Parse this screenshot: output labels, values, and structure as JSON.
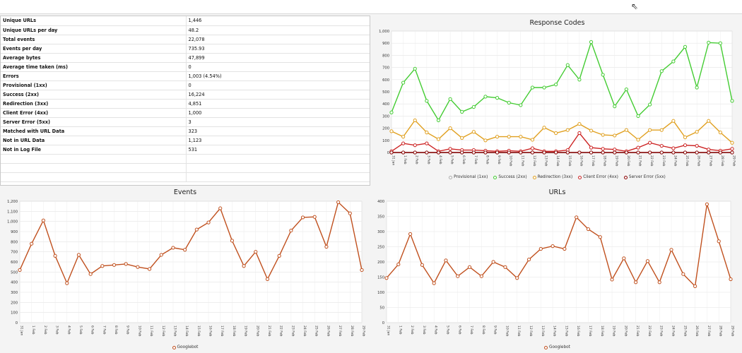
{
  "stats": [
    {
      "label": "Unique URLs",
      "value": "1,446"
    },
    {
      "label": "Unique URLs per day",
      "value": "48.2"
    },
    {
      "label": "Total events",
      "value": "22,078"
    },
    {
      "label": "Events per day",
      "value": "735.93"
    },
    {
      "label": "Average bytes",
      "value": "47,899"
    },
    {
      "label": "Average time taken (ms)",
      "value": "0"
    },
    {
      "label": "Errors",
      "value": "1,003 (4.54%)"
    },
    {
      "label": "Provisional (1xx)",
      "value": "0"
    },
    {
      "label": "Success (2xx)",
      "value": "16,224"
    },
    {
      "label": "Redirection (3xx)",
      "value": "4,851"
    },
    {
      "label": "Client Error (4xx)",
      "value": "1,000"
    },
    {
      "label": "Server Error (5xx)",
      "value": "3"
    },
    {
      "label": "Matched with URL Data",
      "value": "323"
    },
    {
      "label": "Not in URL Data",
      "value": "1,123"
    },
    {
      "label": "Not in Log File",
      "value": "531"
    }
  ],
  "chart_data": [
    {
      "type": "line",
      "title": "Response Codes",
      "ylim": [
        0,
        1000
      ],
      "yticks": [
        0,
        100,
        200,
        300,
        400,
        500,
        600,
        700,
        800,
        900,
        1000
      ],
      "ytick_labels": [
        "0",
        "100",
        "200",
        "300",
        "400",
        "500",
        "600",
        "700",
        "800",
        "900",
        "1,000"
      ],
      "categories": [
        "31 Jan",
        "1 Feb",
        "2 Feb",
        "3 Feb",
        "4 Feb",
        "5 Feb",
        "6 Feb",
        "7 Feb",
        "8 Feb",
        "9 Feb",
        "10 Feb",
        "11 Feb",
        "12 Feb",
        "13 Feb",
        "14 Feb",
        "15 Feb",
        "16 Feb",
        "17 Feb",
        "18 Feb",
        "19 Feb",
        "20 Feb",
        "21 Feb",
        "22 Feb",
        "23 Feb",
        "24 Feb",
        "25 Feb",
        "26 Feb",
        "27 Feb",
        "28 Feb",
        "29 Feb"
      ],
      "legend_position": "bottom",
      "series": [
        {
          "name": "Provisional (1xx)",
          "color": "#aaaaaa",
          "values": [
            0,
            0,
            0,
            0,
            0,
            0,
            0,
            0,
            0,
            0,
            0,
            0,
            0,
            0,
            0,
            0,
            0,
            0,
            0,
            0,
            0,
            0,
            0,
            0,
            0,
            0,
            0,
            0,
            0,
            0
          ]
        },
        {
          "name": "Success (2xx)",
          "color": "#44cc33",
          "values": [
            330,
            575,
            690,
            425,
            265,
            440,
            335,
            375,
            460,
            450,
            410,
            390,
            535,
            535,
            560,
            720,
            600,
            910,
            640,
            380,
            520,
            300,
            395,
            670,
            750,
            870,
            535,
            905,
            900,
            425
          ]
        },
        {
          "name": "Redirection (3xx)",
          "color": "#e0a020",
          "values": [
            175,
            130,
            265,
            165,
            110,
            200,
            120,
            170,
            100,
            130,
            130,
            130,
            105,
            205,
            160,
            185,
            235,
            180,
            145,
            140,
            185,
            105,
            185,
            185,
            260,
            125,
            170,
            260,
            165,
            80
          ]
        },
        {
          "name": "Client Error (4xx)",
          "color": "#cc2222",
          "values": [
            10,
            75,
            60,
            75,
            10,
            30,
            20,
            20,
            15,
            10,
            15,
            10,
            35,
            10,
            10,
            20,
            160,
            40,
            30,
            25,
            10,
            40,
            80,
            55,
            35,
            60,
            55,
            25,
            15,
            30
          ]
        },
        {
          "name": "Server Error (5xx)",
          "color": "#880000",
          "values": [
            0,
            0,
            0,
            0,
            0,
            0,
            0,
            0,
            0,
            0,
            0,
            0,
            0,
            0,
            0,
            0,
            0,
            0,
            0,
            0,
            0,
            0,
            0,
            0,
            0,
            0,
            0,
            0,
            0,
            0
          ]
        }
      ]
    },
    {
      "type": "line",
      "title": "Events",
      "ylim": [
        0,
        1200
      ],
      "yticks": [
        0,
        100,
        200,
        300,
        400,
        500,
        600,
        700,
        800,
        900,
        1000,
        1100,
        1200
      ],
      "ytick_labels": [
        "0",
        "100",
        "200",
        "300",
        "400",
        "500",
        "600",
        "700",
        "800",
        "900",
        "1,000",
        "1,100",
        "1,200"
      ],
      "categories": [
        "31 Jan",
        "1 Feb",
        "2 Feb",
        "3 Feb",
        "4 Feb",
        "5 Feb",
        "6 Feb",
        "7 Feb",
        "8 Feb",
        "9 Feb",
        "10 Feb",
        "11 Feb",
        "12 Feb",
        "13 Feb",
        "14 Feb",
        "15 Feb",
        "16 Feb",
        "17 Feb",
        "18 Feb",
        "19 Feb",
        "20 Feb",
        "21 Feb",
        "22 Feb",
        "23 Feb",
        "24 Feb",
        "25 Feb",
        "26 Feb",
        "27 Feb",
        "28 Feb",
        "29 Feb"
      ],
      "legend_position": "bottom",
      "series": [
        {
          "name": "Googlebot",
          "color": "#c0501e",
          "values": [
            520,
            780,
            1010,
            660,
            390,
            670,
            480,
            560,
            570,
            580,
            550,
            530,
            670,
            740,
            720,
            920,
            990,
            1130,
            810,
            560,
            700,
            430,
            660,
            910,
            1040,
            1045,
            750,
            1190,
            1080,
            520
          ]
        }
      ]
    },
    {
      "type": "line",
      "title": "URLs",
      "ylim": [
        0,
        400
      ],
      "yticks": [
        0,
        50,
        100,
        150,
        200,
        250,
        300,
        350,
        400
      ],
      "ytick_labels": [
        "0",
        "50",
        "100",
        "150",
        "200",
        "250",
        "300",
        "350",
        "400"
      ],
      "categories": [
        "31 Jan",
        "1 Feb",
        "2 Feb",
        "3 Feb",
        "4 Feb",
        "5 Feb",
        "6 Feb",
        "7 Feb",
        "8 Feb",
        "9 Feb",
        "10 Feb",
        "11 Feb",
        "12 Feb",
        "13 Feb",
        "14 Feb",
        "15 Feb",
        "16 Feb",
        "17 Feb",
        "18 Feb",
        "19 Feb",
        "20 Feb",
        "21 Feb",
        "22 Feb",
        "23 Feb",
        "24 Feb",
        "25 Feb",
        "26 Feb",
        "27 Feb",
        "28 Feb",
        "29 Feb"
      ],
      "legend_position": "bottom",
      "series": [
        {
          "name": "Googlebot",
          "color": "#c0501e",
          "values": [
            147,
            192,
            292,
            190,
            130,
            205,
            153,
            183,
            153,
            200,
            183,
            147,
            208,
            243,
            252,
            243,
            347,
            308,
            282,
            142,
            212,
            133,
            203,
            133,
            240,
            160,
            120,
            390,
            268,
            143
          ]
        }
      ]
    }
  ]
}
